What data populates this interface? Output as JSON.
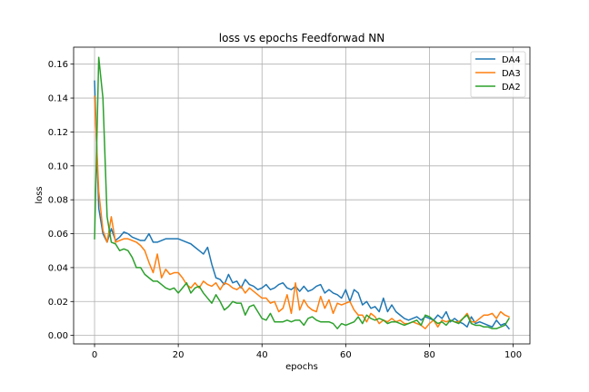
{
  "chart_data": {
    "type": "line",
    "title": "loss vs epochs Feedforwad NN",
    "xlabel": "epochs",
    "ylabel": "loss",
    "xlim": [
      -5,
      104
    ],
    "ylim": [
      -0.005,
      0.17
    ],
    "xticks": [
      0,
      20,
      40,
      60,
      80,
      100
    ],
    "xtick_labels": [
      "0",
      "20",
      "40",
      "60",
      "80",
      "100"
    ],
    "yticks": [
      0.0,
      0.02,
      0.04,
      0.06,
      0.08,
      0.1,
      0.12,
      0.14,
      0.16
    ],
    "ytick_labels": [
      "0.00",
      "0.02",
      "0.04",
      "0.06",
      "0.08",
      "0.10",
      "0.12",
      "0.14",
      "0.16"
    ],
    "grid": true,
    "legend_position": "top-right",
    "series": [
      {
        "name": "DA4",
        "color": "#1f77b4",
        "values": [
          0.15,
          0.075,
          0.06,
          0.055,
          0.063,
          0.056,
          0.058,
          0.061,
          0.06,
          0.058,
          0.057,
          0.056,
          0.056,
          0.06,
          0.055,
          0.055,
          0.056,
          0.057,
          0.057,
          0.057,
          0.057,
          0.056,
          0.055,
          0.054,
          0.052,
          0.05,
          0.048,
          0.052,
          0.042,
          0.034,
          0.033,
          0.03,
          0.036,
          0.031,
          0.032,
          0.028,
          0.033,
          0.03,
          0.029,
          0.027,
          0.028,
          0.03,
          0.027,
          0.028,
          0.03,
          0.031,
          0.028,
          0.027,
          0.029,
          0.026,
          0.029,
          0.026,
          0.027,
          0.029,
          0.03,
          0.025,
          0.027,
          0.025,
          0.024,
          0.022,
          0.027,
          0.02,
          0.027,
          0.025,
          0.018,
          0.02,
          0.016,
          0.017,
          0.014,
          0.022,
          0.014,
          0.018,
          0.014,
          0.012,
          0.01,
          0.009,
          0.01,
          0.011,
          0.009,
          0.011,
          0.01,
          0.009,
          0.012,
          0.01,
          0.014,
          0.008,
          0.01,
          0.008,
          0.007,
          0.005,
          0.011,
          0.007,
          0.008,
          0.007,
          0.006,
          0.005,
          0.009,
          0.006,
          0.007,
          0.004
        ]
      },
      {
        "name": "DA3",
        "color": "#ff7f0e",
        "values": [
          0.141,
          0.085,
          0.062,
          0.055,
          0.07,
          0.055,
          0.056,
          0.057,
          0.057,
          0.056,
          0.055,
          0.053,
          0.05,
          0.043,
          0.037,
          0.048,
          0.034,
          0.039,
          0.036,
          0.037,
          0.037,
          0.034,
          0.03,
          0.028,
          0.031,
          0.028,
          0.032,
          0.03,
          0.029,
          0.031,
          0.027,
          0.031,
          0.03,
          0.028,
          0.027,
          0.029,
          0.025,
          0.028,
          0.026,
          0.024,
          0.022,
          0.022,
          0.019,
          0.02,
          0.014,
          0.016,
          0.024,
          0.013,
          0.031,
          0.015,
          0.021,
          0.017,
          0.015,
          0.014,
          0.023,
          0.016,
          0.021,
          0.013,
          0.019,
          0.018,
          0.019,
          0.02,
          0.015,
          0.012,
          0.012,
          0.008,
          0.013,
          0.011,
          0.007,
          0.009,
          0.008,
          0.01,
          0.008,
          0.009,
          0.007,
          0.007,
          0.008,
          0.007,
          0.006,
          0.004,
          0.007,
          0.009,
          0.005,
          0.009,
          0.008,
          0.009,
          0.008,
          0.008,
          0.01,
          0.013,
          0.008,
          0.008,
          0.01,
          0.012,
          0.012,
          0.013,
          0.01,
          0.014,
          0.012,
          0.011
        ]
      },
      {
        "name": "DA2",
        "color": "#2ca02c",
        "values": [
          0.057,
          0.164,
          0.14,
          0.07,
          0.055,
          0.054,
          0.05,
          0.051,
          0.05,
          0.046,
          0.04,
          0.04,
          0.036,
          0.034,
          0.032,
          0.032,
          0.03,
          0.028,
          0.027,
          0.028,
          0.025,
          0.028,
          0.031,
          0.025,
          0.028,
          0.029,
          0.025,
          0.022,
          0.019,
          0.024,
          0.02,
          0.015,
          0.017,
          0.02,
          0.019,
          0.019,
          0.012,
          0.017,
          0.018,
          0.014,
          0.01,
          0.009,
          0.013,
          0.008,
          0.008,
          0.008,
          0.009,
          0.008,
          0.009,
          0.009,
          0.006,
          0.01,
          0.011,
          0.009,
          0.008,
          0.008,
          0.008,
          0.007,
          0.004,
          0.007,
          0.006,
          0.007,
          0.008,
          0.011,
          0.007,
          0.012,
          0.01,
          0.009,
          0.01,
          0.009,
          0.007,
          0.008,
          0.008,
          0.007,
          0.006,
          0.007,
          0.008,
          0.009,
          0.006,
          0.012,
          0.011,
          0.009,
          0.007,
          0.008,
          0.006,
          0.009,
          0.008,
          0.007,
          0.01,
          0.012,
          0.007,
          0.006,
          0.006,
          0.005,
          0.005,
          0.004,
          0.004,
          0.005,
          0.006,
          0.01
        ]
      }
    ]
  }
}
